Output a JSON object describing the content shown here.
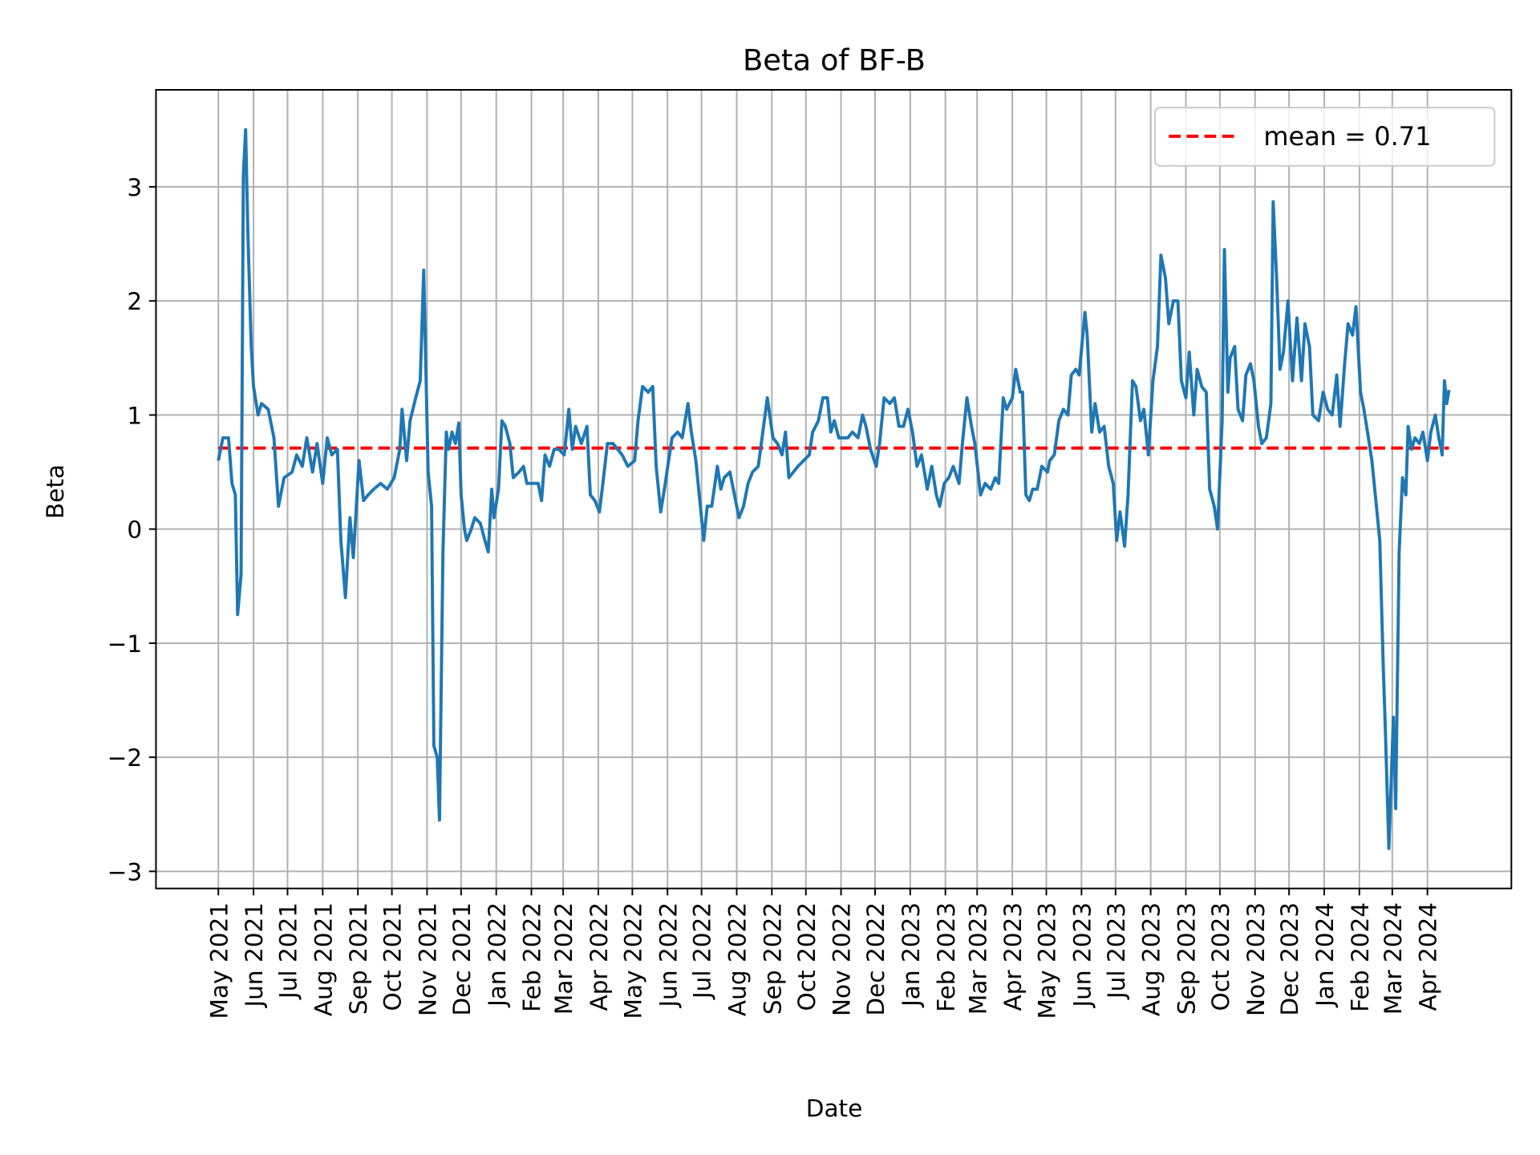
{
  "chart_data": {
    "type": "line",
    "title": "Beta of BF-B",
    "xlabel": "Date",
    "ylabel": "Beta",
    "xlim": [
      "2021-03-07",
      "2024-06-14"
    ],
    "ylim": [
      -3.15,
      3.85
    ],
    "grid": true,
    "legend_placement": "top-right",
    "yticks": [
      -3,
      -2,
      -1,
      0,
      1,
      2,
      3
    ],
    "ytick_labels": [
      "−3",
      "−2",
      "−1",
      "0",
      "1",
      "2",
      "3"
    ],
    "xticks": [
      "2021-05-01",
      "2021-06-01",
      "2021-07-01",
      "2021-08-01",
      "2021-09-01",
      "2021-10-01",
      "2021-11-01",
      "2021-12-01",
      "2022-01-01",
      "2022-02-01",
      "2022-03-01",
      "2022-04-01",
      "2022-05-01",
      "2022-06-01",
      "2022-07-01",
      "2022-08-01",
      "2022-09-01",
      "2022-10-01",
      "2022-11-01",
      "2022-12-01",
      "2023-01-01",
      "2023-02-01",
      "2023-03-01",
      "2023-04-01",
      "2023-05-01",
      "2023-06-01",
      "2023-07-01",
      "2023-08-01",
      "2023-09-01",
      "2023-10-01",
      "2023-11-01",
      "2023-12-01",
      "2024-01-01",
      "2024-02-01",
      "2024-03-01",
      "2024-04-01"
    ],
    "xtick_labels": [
      "May 2021",
      "Jun 2021",
      "Jul 2021",
      "Aug 2021",
      "Sep 2021",
      "Oct 2021",
      "Nov 2021",
      "Dec 2021",
      "Jan 2022",
      "Feb 2022",
      "Mar 2022",
      "Apr 2022",
      "May 2022",
      "Jun 2022",
      "Jul 2022",
      "Aug 2022",
      "Sep 2022",
      "Oct 2022",
      "Nov 2022",
      "Dec 2022",
      "Jan 2023",
      "Feb 2023",
      "Mar 2023",
      "Apr 2023",
      "May 2023",
      "Jun 2023",
      "Jul 2023",
      "Aug 2023",
      "Sep 2023",
      "Oct 2023",
      "Nov 2023",
      "Dec 2023",
      "Jan 2024",
      "Feb 2024",
      "Mar 2024",
      "Apr 2024"
    ],
    "mean_line": {
      "value": 0.71,
      "label": "mean = 0.71",
      "color": "#ff0000",
      "style": "dashed"
    },
    "series": [
      {
        "color": "#1f77b4",
        "x": [
          "2021-05-01",
          "2021-05-05",
          "2021-05-10",
          "2021-05-13",
          "2021-05-16",
          "2021-05-18",
          "2021-05-21",
          "2021-05-23",
          "2021-05-25",
          "2021-05-27",
          "2021-05-30",
          "2021-06-01",
          "2021-06-05",
          "2021-06-08",
          "2021-06-14",
          "2021-06-19",
          "2021-06-23",
          "2021-06-28",
          "2021-07-05",
          "2021-07-09",
          "2021-07-14",
          "2021-07-18",
          "2021-07-23",
          "2021-07-27",
          "2021-08-01",
          "2021-08-05",
          "2021-08-09",
          "2021-08-14",
          "2021-08-17",
          "2021-08-21",
          "2021-08-25",
          "2021-08-28",
          "2021-09-02",
          "2021-09-06",
          "2021-09-10",
          "2021-09-15",
          "2021-09-21",
          "2021-09-27",
          "2021-10-03",
          "2021-10-08",
          "2021-10-10",
          "2021-10-14",
          "2021-10-17",
          "2021-10-22",
          "2021-10-26",
          "2021-10-29",
          "2021-11-02",
          "2021-11-05",
          "2021-11-07",
          "2021-11-10",
          "2021-11-12",
          "2021-11-15",
          "2021-11-18",
          "2021-11-20",
          "2021-11-23",
          "2021-11-26",
          "2021-11-29",
          "2021-12-01",
          "2021-12-04",
          "2021-12-06",
          "2021-12-10",
          "2021-12-13",
          "2021-12-18",
          "2021-12-22",
          "2021-12-25",
          "2021-12-28",
          "2021-12-30",
          "2022-01-03",
          "2022-01-06",
          "2022-01-09",
          "2022-01-13",
          "2022-01-16",
          "2022-01-21",
          "2022-01-25",
          "2022-01-28",
          "2022-02-03",
          "2022-02-07",
          "2022-02-10",
          "2022-02-13",
          "2022-02-17",
          "2022-02-21",
          "2022-02-25",
          "2022-03-02",
          "2022-03-06",
          "2022-03-09",
          "2022-03-12",
          "2022-03-17",
          "2022-03-22",
          "2022-03-25",
          "2022-03-29",
          "2022-04-02",
          "2022-04-05",
          "2022-04-09",
          "2022-04-14",
          "2022-04-18",
          "2022-04-22",
          "2022-04-27",
          "2022-05-03",
          "2022-05-06",
          "2022-05-10",
          "2022-05-15",
          "2022-05-19",
          "2022-05-22",
          "2022-05-26",
          "2022-05-30",
          "2022-06-02",
          "2022-06-05",
          "2022-06-10",
          "2022-06-14",
          "2022-06-19",
          "2022-06-22",
          "2022-06-26",
          "2022-06-29",
          "2022-07-03",
          "2022-07-06",
          "2022-07-10",
          "2022-07-15",
          "2022-07-18",
          "2022-07-21",
          "2022-07-26",
          "2022-07-30",
          "2022-08-03",
          "2022-08-07",
          "2022-08-11",
          "2022-08-15",
          "2022-08-20",
          "2022-08-24",
          "2022-08-28",
          "2022-09-02",
          "2022-09-06",
          "2022-09-10",
          "2022-09-13",
          "2022-09-16",
          "2022-09-20",
          "2022-09-24",
          "2022-09-29",
          "2022-10-04",
          "2022-10-07",
          "2022-10-12",
          "2022-10-16",
          "2022-10-20",
          "2022-10-23",
          "2022-10-26",
          "2022-10-30",
          "2022-11-03",
          "2022-11-07",
          "2022-11-11",
          "2022-11-16",
          "2022-11-20",
          "2022-11-23",
          "2022-11-27",
          "2022-12-02",
          "2022-12-05",
          "2022-12-09",
          "2022-12-14",
          "2022-12-18",
          "2022-12-22",
          "2022-12-26",
          "2022-12-30",
          "2023-01-03",
          "2023-01-07",
          "2023-01-11",
          "2023-01-16",
          "2023-01-20",
          "2023-01-24",
          "2023-01-27",
          "2023-01-31",
          "2023-02-04",
          "2023-02-08",
          "2023-02-13",
          "2023-02-16",
          "2023-02-20",
          "2023-02-24",
          "2023-02-27",
          "2023-03-04",
          "2023-03-08",
          "2023-03-13",
          "2023-03-17",
          "2023-03-20",
          "2023-03-24",
          "2023-03-27",
          "2023-04-01",
          "2023-04-04",
          "2023-04-08",
          "2023-04-10",
          "2023-04-13",
          "2023-04-16",
          "2023-04-19",
          "2023-04-23",
          "2023-04-27",
          "2023-05-02",
          "2023-05-04",
          "2023-05-08",
          "2023-05-12",
          "2023-05-16",
          "2023-05-20",
          "2023-05-23",
          "2023-05-27",
          "2023-05-30",
          "2023-06-04",
          "2023-06-06",
          "2023-06-10",
          "2023-06-13",
          "2023-06-17",
          "2023-06-21",
          "2023-06-25",
          "2023-06-29",
          "2023-07-02",
          "2023-07-05",
          "2023-07-09",
          "2023-07-12",
          "2023-07-16",
          "2023-07-19",
          "2023-07-23",
          "2023-07-26",
          "2023-07-30",
          "2023-08-03",
          "2023-08-07",
          "2023-08-10",
          "2023-08-14",
          "2023-08-17",
          "2023-08-21",
          "2023-08-25",
          "2023-08-28",
          "2023-09-01",
          "2023-09-04",
          "2023-09-08",
          "2023-09-11",
          "2023-09-15",
          "2023-09-19",
          "2023-09-22",
          "2023-09-26",
          "2023-09-29",
          "2023-10-03",
          "2023-10-05",
          "2023-10-08",
          "2023-10-10",
          "2023-10-14",
          "2023-10-17",
          "2023-10-21",
          "2023-10-24",
          "2023-10-28",
          "2023-10-31",
          "2023-11-04",
          "2023-11-07",
          "2023-11-11",
          "2023-11-15",
          "2023-11-17",
          "2023-11-20",
          "2023-11-23",
          "2023-11-26",
          "2023-11-30",
          "2023-12-04",
          "2023-12-08",
          "2023-12-12",
          "2023-12-15",
          "2023-12-19",
          "2023-12-22",
          "2023-12-27",
          "2023-12-31",
          "2024-01-04",
          "2024-01-08",
          "2024-01-12",
          "2024-01-15",
          "2024-01-19",
          "2024-01-22",
          "2024-01-26",
          "2024-01-29",
          "2024-02-02",
          "2024-02-05",
          "2024-02-09",
          "2024-02-12",
          "2024-02-16",
          "2024-02-19",
          "2024-02-22",
          "2024-02-24",
          "2024-02-27",
          "2024-03-02",
          "2024-03-04",
          "2024-03-07",
          "2024-03-10",
          "2024-03-13",
          "2024-03-15",
          "2024-03-18",
          "2024-03-21",
          "2024-03-25",
          "2024-03-28",
          "2024-04-01",
          "2024-04-04",
          "2024-04-08",
          "2024-04-11",
          "2024-04-14",
          "2024-04-16",
          "2024-04-18",
          "2024-04-20"
        ],
        "y": [
          0.6,
          0.8,
          0.8,
          0.4,
          0.3,
          -0.75,
          -0.4,
          3.1,
          3.5,
          2.6,
          1.6,
          1.25,
          1.0,
          1.1,
          1.05,
          0.8,
          0.2,
          0.45,
          0.5,
          0.65,
          0.55,
          0.8,
          0.5,
          0.75,
          0.4,
          0.8,
          0.65,
          0.7,
          -0.1,
          -0.6,
          0.1,
          -0.25,
          0.6,
          0.25,
          0.3,
          0.35,
          0.4,
          0.35,
          0.45,
          0.7,
          1.05,
          0.6,
          0.95,
          1.15,
          1.3,
          2.27,
          0.5,
          0.2,
          -1.9,
          -2.0,
          -2.55,
          -0.2,
          0.85,
          0.7,
          0.85,
          0.75,
          0.93,
          0.3,
          0.0,
          -0.1,
          0.0,
          0.1,
          0.05,
          -0.1,
          -0.2,
          0.35,
          0.1,
          0.35,
          0.95,
          0.9,
          0.75,
          0.45,
          0.5,
          0.55,
          0.4,
          0.4,
          0.4,
          0.25,
          0.65,
          0.55,
          0.7,
          0.7,
          0.65,
          1.05,
          0.7,
          0.9,
          0.75,
          0.9,
          0.3,
          0.25,
          0.15,
          0.4,
          0.75,
          0.75,
          0.7,
          0.65,
          0.55,
          0.6,
          0.95,
          1.25,
          1.2,
          1.25,
          0.55,
          0.15,
          0.4,
          0.6,
          0.8,
          0.85,
          0.8,
          1.1,
          0.85,
          0.6,
          0.3,
          -0.1,
          0.2,
          0.2,
          0.55,
          0.35,
          0.45,
          0.5,
          0.3,
          0.1,
          0.2,
          0.4,
          0.5,
          0.55,
          0.85,
          1.15,
          0.8,
          0.75,
          0.65,
          0.85,
          0.45,
          0.5,
          0.55,
          0.6,
          0.65,
          0.85,
          0.95,
          1.15,
          1.15,
          0.85,
          0.95,
          0.8,
          0.8,
          0.8,
          0.85,
          0.8,
          1.0,
          0.9,
          0.7,
          0.55,
          0.75,
          1.15,
          1.1,
          1.15,
          0.9,
          0.9,
          1.05,
          0.85,
          0.55,
          0.65,
          0.35,
          0.55,
          0.3,
          0.2,
          0.4,
          0.45,
          0.55,
          0.4,
          0.75,
          1.15,
          0.9,
          0.75,
          0.3,
          0.4,
          0.35,
          0.45,
          0.4,
          1.15,
          1.05,
          1.15,
          1.4,
          1.2,
          1.2,
          0.3,
          0.25,
          0.35,
          0.35,
          0.55,
          0.5,
          0.6,
          0.65,
          0.95,
          1.05,
          1.0,
          1.35,
          1.4,
          1.35,
          1.9,
          1.7,
          0.85,
          1.1,
          0.85,
          0.9,
          0.55,
          0.4,
          -0.1,
          0.15,
          -0.15,
          0.3,
          1.3,
          1.25,
          0.95,
          1.05,
          0.65,
          1.3,
          1.6,
          2.4,
          2.2,
          1.8,
          2.0,
          2.0,
          1.3,
          1.15,
          1.55,
          1.0,
          1.4,
          1.25,
          1.2,
          0.35,
          0.2,
          0.0,
          0.95,
          2.45,
          1.2,
          1.5,
          1.6,
          1.05,
          0.95,
          1.35,
          1.45,
          1.3,
          0.9,
          0.75,
          0.8,
          1.1,
          2.87,
          2.2,
          1.4,
          1.55,
          2.0,
          1.3,
          1.85,
          1.3,
          1.8,
          1.6,
          1.0,
          0.95,
          1.2,
          1.05,
          1.0,
          1.35,
          0.9,
          1.45,
          1.8,
          1.7,
          1.95,
          1.2,
          1.05,
          0.8,
          0.6,
          0.2,
          -0.1,
          -1.2,
          -1.8,
          -2.8,
          -1.65,
          -2.45,
          -0.2,
          0.45,
          0.3,
          0.9,
          0.7,
          0.8,
          0.75,
          0.85,
          0.6,
          0.85,
          1.0,
          0.8,
          0.65,
          1.3,
          1.1,
          1.22
        ]
      }
    ]
  }
}
